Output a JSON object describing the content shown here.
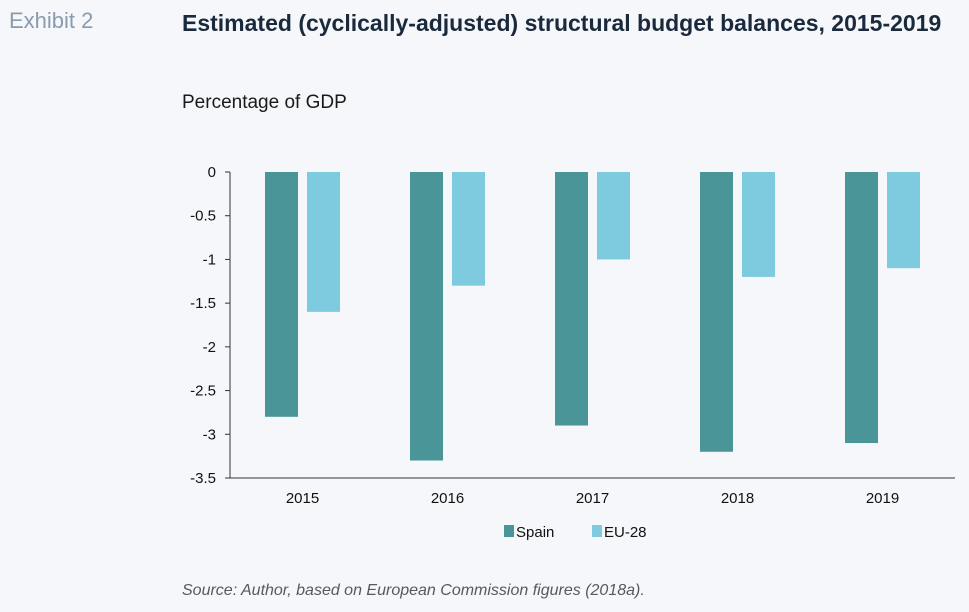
{
  "header": {
    "exhibit_label": "Exhibit 2",
    "title": "Estimated (cyclically-adjusted) structural budget balances, 2015-2019",
    "subtitle": "Percentage of GDP"
  },
  "footer": {
    "source": "Source: Author, based on European Commission figures (2018a)."
  },
  "colors": {
    "spain": "#4a9598",
    "eu28": "#7ecbe0",
    "axis": "#333333"
  },
  "chart_data": {
    "type": "bar",
    "title": "Estimated (cyclically-adjusted) structural budget balances, 2015-2019",
    "subtitle": "Percentage of GDP",
    "xlabel": "",
    "ylabel": "",
    "categories": [
      "2015",
      "2016",
      "2017",
      "2018",
      "2019"
    ],
    "series": [
      {
        "name": "Spain",
        "values": [
          -2.8,
          -3.3,
          -2.9,
          -3.2,
          -3.1
        ]
      },
      {
        "name": "EU-28",
        "values": [
          -1.6,
          -1.3,
          -1.0,
          -1.2,
          -1.1
        ]
      }
    ],
    "ylim": [
      -3.5,
      0
    ],
    "yticks": [
      "0",
      "-0.5",
      "-1",
      "-1.5",
      "-2",
      "-2.5",
      "-3",
      "-3.5"
    ],
    "legend_position": "bottom-center",
    "grid": false
  }
}
